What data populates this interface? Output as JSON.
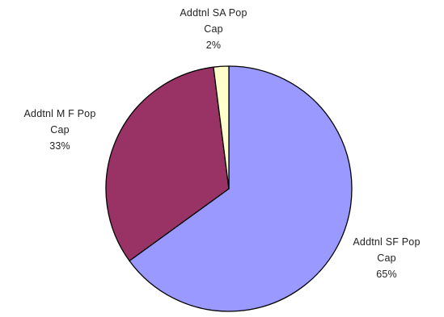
{
  "chart_data": {
    "type": "pie",
    "start_angle_deg": 0,
    "direction": "clockwise",
    "slices": [
      {
        "label_lines": [
          "Addtnl SF Pop",
          "Cap"
        ],
        "value": 65,
        "pct_text": "65%",
        "color": "#9999ff"
      },
      {
        "label_lines": [
          "Addtnl M F Pop",
          "Cap"
        ],
        "value": 33,
        "pct_text": "33%",
        "color": "#993366"
      },
      {
        "label_lines": [
          "Addtnl SA Pop",
          "Cap"
        ],
        "value": 2,
        "pct_text": "2%",
        "color": "#ffffcc"
      }
    ],
    "legend": "none",
    "outline_color": "#000000"
  }
}
